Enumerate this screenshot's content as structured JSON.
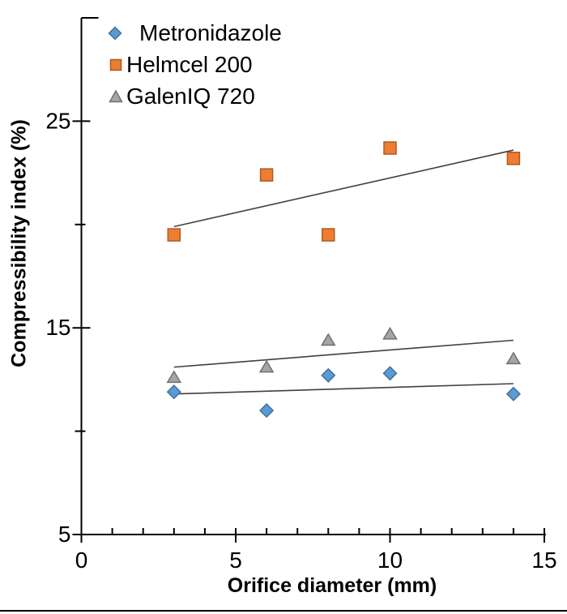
{
  "chart_data": {
    "type": "scatter",
    "title": "",
    "xlabel": "Orifice diameter (mm)",
    "ylabel": "Compressibility index (%)",
    "grid": false,
    "legend_position": "top-left-inside",
    "axis_color": "#000000",
    "trendline_color": "#404040",
    "x_axis": {
      "min": 0,
      "max": 15,
      "major_tick_values": [
        0,
        5,
        10,
        15
      ],
      "tick_labels": [
        "0",
        "5",
        "10",
        "15"
      ],
      "minor_tick_step": 1
    },
    "y_axis": {
      "min": 5,
      "max": 30,
      "major_tick_values": [
        5,
        15,
        25
      ],
      "tick_labels": [
        "5",
        "15",
        "25"
      ],
      "minor_tick_values": [
        10,
        20,
        30
      ]
    },
    "x": [
      3,
      6,
      8,
      10,
      14
    ],
    "series": [
      {
        "name": "Metronidazole",
        "marker": "diamond",
        "fill": "#5B9BD5",
        "stroke": "#41719C",
        "values": [
          11.9,
          11.0,
          12.7,
          12.8,
          11.8
        ],
        "trendline": {
          "x1": 3,
          "y1": 11.8,
          "x2": 14,
          "y2": 12.3
        }
      },
      {
        "name": "Helmcel 200",
        "marker": "square",
        "fill": "#ED7D31",
        "stroke": "#AE5A21",
        "values": [
          19.5,
          22.4,
          19.5,
          23.7,
          23.2
        ],
        "trendline": {
          "x1": 3,
          "y1": 19.9,
          "x2": 14,
          "y2": 23.6
        }
      },
      {
        "name": "GalenIQ 720",
        "marker": "triangle",
        "fill": "#A5A5A5",
        "stroke": "#707070",
        "values": [
          12.6,
          13.1,
          14.4,
          14.7,
          13.5
        ],
        "trendline": {
          "x1": 3,
          "y1": 13.1,
          "x2": 14,
          "y2": 14.4
        }
      }
    ]
  }
}
